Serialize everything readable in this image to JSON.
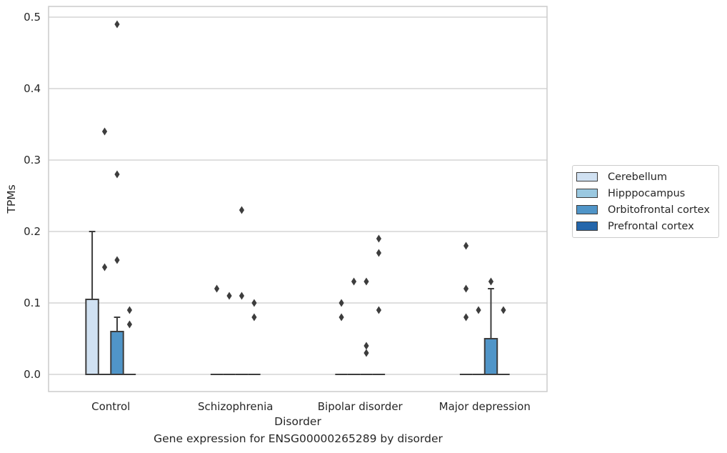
{
  "chart_data": {
    "type": "box",
    "title": "",
    "caption": "Gene expression for ENSG00000265289 by disorder",
    "xlabel": "Disorder",
    "ylabel": "TPMs",
    "ylim": [
      -0.024,
      0.515
    ],
    "yticks": [
      0.0,
      0.1,
      0.2,
      0.3,
      0.4,
      0.5
    ],
    "ytick_labels": [
      "0.0",
      "0.1",
      "0.2",
      "0.3",
      "0.4",
      "0.5"
    ],
    "grid": "horizontal",
    "legend_position": "right",
    "categories": [
      "Control",
      "Schizophrenia",
      "Bipolar disorder",
      "Major depression"
    ],
    "series": [
      {
        "name": "Cerebellum",
        "color": "#d0e1f2",
        "boxes": [
          {
            "q1": 0,
            "median": 0,
            "q3": 0.105,
            "whisker_low": 0,
            "whisker_high": 0.2,
            "outliers": []
          },
          {
            "q1": 0,
            "median": 0,
            "q3": 0,
            "whisker_low": 0,
            "whisker_high": 0,
            "outliers": [
              0.12
            ]
          },
          {
            "q1": 0,
            "median": 0,
            "q3": 0,
            "whisker_low": 0,
            "whisker_high": 0,
            "outliers": [
              0.1,
              0.08
            ]
          },
          {
            "q1": 0,
            "median": 0,
            "q3": 0,
            "whisker_low": 0,
            "whisker_high": 0,
            "outliers": [
              0.18,
              0.12,
              0.08
            ]
          }
        ]
      },
      {
        "name": "Hipppocampus",
        "color": "#9ac8e0",
        "boxes": [
          {
            "q1": 0,
            "median": 0,
            "q3": 0,
            "whisker_low": 0,
            "whisker_high": 0,
            "outliers": [
              0.34,
              0.15
            ]
          },
          {
            "q1": 0,
            "median": 0,
            "q3": 0,
            "whisker_low": 0,
            "whisker_high": 0,
            "outliers": [
              0.11
            ]
          },
          {
            "q1": 0,
            "median": 0,
            "q3": 0,
            "whisker_low": 0,
            "whisker_high": 0,
            "outliers": [
              0.13
            ]
          },
          {
            "q1": 0,
            "median": 0,
            "q3": 0,
            "whisker_low": 0,
            "whisker_high": 0,
            "outliers": [
              0.09
            ]
          }
        ]
      },
      {
        "name": "Orbitofrontal cortex",
        "color": "#5095c8",
        "boxes": [
          {
            "q1": 0,
            "median": 0,
            "q3": 0.06,
            "whisker_low": 0,
            "whisker_high": 0.08,
            "outliers": [
              0.49,
              0.28,
              0.16
            ]
          },
          {
            "q1": 0,
            "median": 0,
            "q3": 0,
            "whisker_low": 0,
            "whisker_high": 0,
            "outliers": [
              0.23,
              0.11
            ]
          },
          {
            "q1": 0,
            "median": 0,
            "q3": 0,
            "whisker_low": 0,
            "whisker_high": 0,
            "outliers": [
              0.13,
              0.04,
              0.03
            ]
          },
          {
            "q1": 0,
            "median": 0,
            "q3": 0.05,
            "whisker_low": 0,
            "whisker_high": 0.12,
            "outliers": [
              0.13
            ]
          }
        ]
      },
      {
        "name": "Prefrontal cortex",
        "color": "#2466ab",
        "boxes": [
          {
            "q1": 0,
            "median": 0,
            "q3": 0,
            "whisker_low": 0,
            "whisker_high": 0,
            "outliers": [
              0.09,
              0.07
            ]
          },
          {
            "q1": 0,
            "median": 0,
            "q3": 0,
            "whisker_low": 0,
            "whisker_high": 0,
            "outliers": [
              0.1,
              0.08
            ]
          },
          {
            "q1": 0,
            "median": 0,
            "q3": 0,
            "whisker_low": 0,
            "whisker_high": 0,
            "outliers": [
              0.19,
              0.17,
              0.09
            ]
          },
          {
            "q1": 0,
            "median": 0,
            "q3": 0,
            "whisker_low": 0,
            "whisker_high": 0,
            "outliers": [
              0.09
            ]
          }
        ]
      }
    ]
  }
}
